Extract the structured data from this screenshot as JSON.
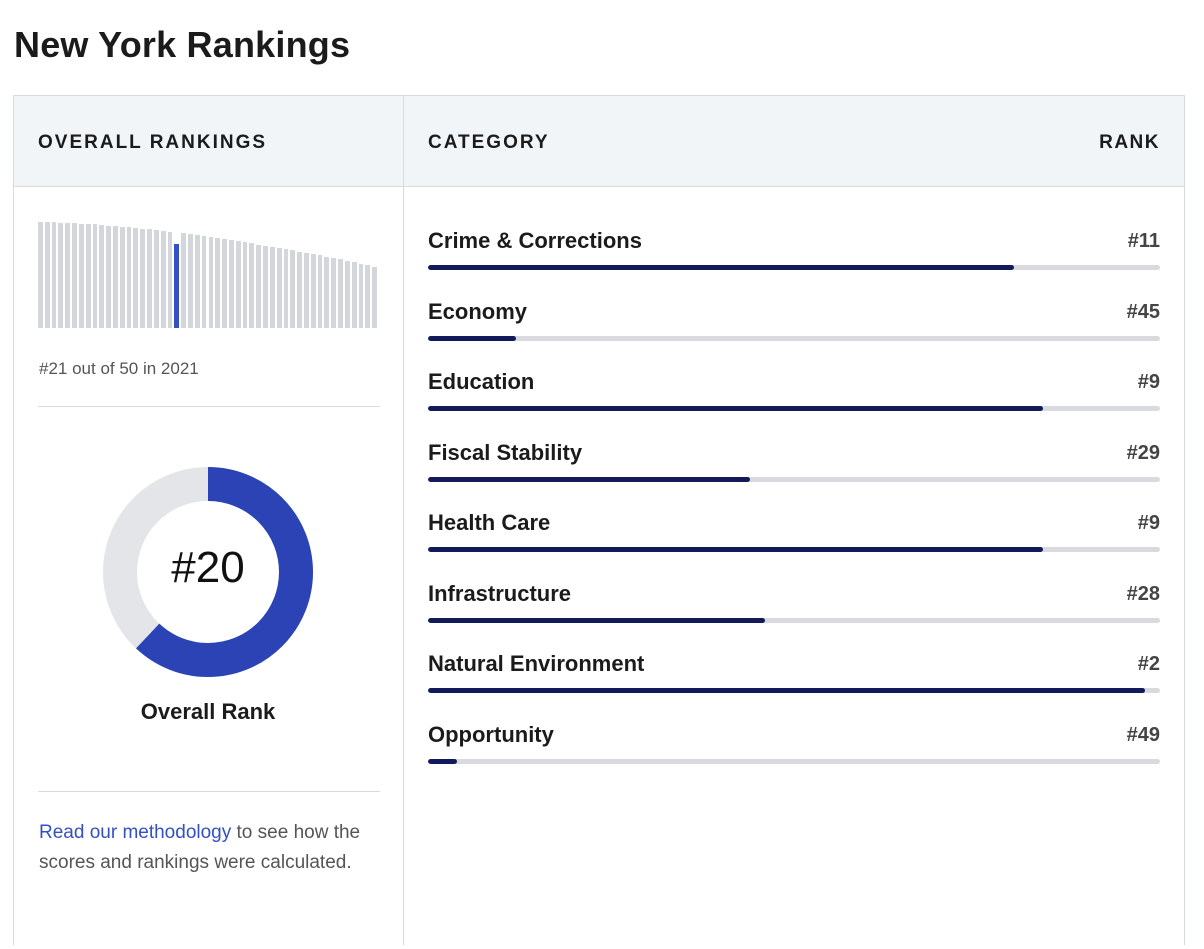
{
  "page": {
    "title": "New York Rankings"
  },
  "left": {
    "header": "OVERALL RANKINGS",
    "spark": {
      "count": 50,
      "highlight_index": 20,
      "bar_color": "#d3d6db",
      "highlight_color": "#3350c4"
    },
    "out_of_text": "#21 out of 50 in 2021",
    "overall": {
      "rank_text": "#20",
      "rank": 20,
      "total": 50,
      "label": "Overall Rank",
      "fill_color": "#2b43b5",
      "track_color": "#e3e5e9"
    },
    "methodology": {
      "link_text": "Read our methodology",
      "rest_text": " to see how the scores and rankings were calculated."
    }
  },
  "right": {
    "header_category": "CATEGORY",
    "header_rank": "RANK",
    "categories": [
      {
        "name": "Crime & Corrections",
        "rank_text": "#11",
        "rank": 11
      },
      {
        "name": "Economy",
        "rank_text": "#45",
        "rank": 45
      },
      {
        "name": "Education",
        "rank_text": "#9",
        "rank": 9
      },
      {
        "name": "Fiscal Stability",
        "rank_text": "#29",
        "rank": 29
      },
      {
        "name": "Health Care",
        "rank_text": "#9",
        "rank": 9
      },
      {
        "name": "Infrastructure",
        "rank_text": "#28",
        "rank": 28
      },
      {
        "name": "Natural Environment",
        "rank_text": "#2",
        "rank": 2
      },
      {
        "name": "Opportunity",
        "rank_text": "#49",
        "rank": 49
      }
    ],
    "bar_fill_color": "#121a5a",
    "bar_track_color": "#d8dadf"
  }
}
